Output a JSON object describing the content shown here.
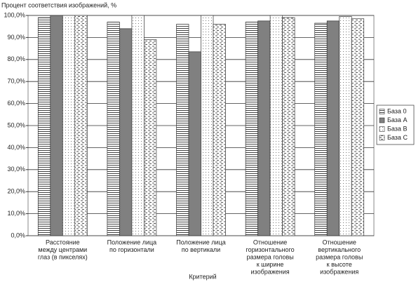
{
  "chart_data": {
    "type": "bar",
    "y_axis_title": "Процент соответствия изображений, %",
    "x_axis_title": "Критерий",
    "categories": [
      [
        "Расстояние",
        "между центрами",
        "глаз (в пикселях)"
      ],
      [
        "Положение лица",
        "по горизонтали"
      ],
      [
        "Положение лица",
        "по вертикали"
      ],
      [
        "Отношение",
        "горизонтального",
        "размера головы",
        "к ширине",
        "изображения"
      ],
      [
        "Отношение",
        "вертикального",
        "размера головы",
        "к высоте",
        "изображения"
      ]
    ],
    "series": [
      {
        "name": "База 0",
        "color": "#444444",
        "values": [
          99,
          97,
          96,
          97,
          96.5
        ]
      },
      {
        "name": "База A",
        "color": "#808080",
        "values": [
          100,
          94,
          83.5,
          97.5,
          97.5
        ]
      },
      {
        "name": "База B",
        "color": "#777777",
        "values": [
          100,
          100,
          100,
          100,
          99.5
        ]
      },
      {
        "name": "База C",
        "color": "#555555",
        "values": [
          100,
          89,
          96,
          99,
          98.5
        ]
      }
    ],
    "ylim": [
      0,
      100
    ],
    "yticks": [
      {
        "value": 0,
        "label": "0,0%"
      },
      {
        "value": 10,
        "label": "10,0%"
      },
      {
        "value": 20,
        "label": "20,0%"
      },
      {
        "value": 30,
        "label": "30,0%"
      },
      {
        "value": 40,
        "label": "40,0%"
      },
      {
        "value": 50,
        "label": "50,0%"
      },
      {
        "value": 60,
        "label": "60,0%"
      },
      {
        "value": 70,
        "label": "70,0%"
      },
      {
        "value": 80,
        "label": "80,0%"
      },
      {
        "value": 90,
        "label": "90,0%"
      },
      {
        "value": 100,
        "label": "100,0%"
      }
    ],
    "grid": true,
    "legend": "right"
  }
}
